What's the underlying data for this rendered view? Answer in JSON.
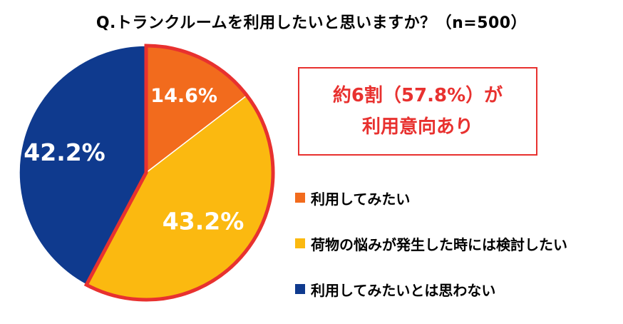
{
  "title": "Q.トランクルームを利用したいと思いますか？（n=500）",
  "callout": {
    "line1": "約6割（57.8%）が",
    "line2": "利用意向あり",
    "color": "#e8312f"
  },
  "chart_data": {
    "type": "pie",
    "title": "Q.トランクルームを利用したいと思いますか？（n=500）",
    "n": 500,
    "start": "12 o'clock",
    "direction": "clockwise",
    "slices": [
      {
        "name": "利用してみたい",
        "value": 14.6,
        "label": "14.6%",
        "color": "#f26b1d",
        "highlighted": true
      },
      {
        "name": "荷物の悩みが発生した時には検討したい",
        "value": 43.2,
        "label": "43.2%",
        "color": "#fbb910",
        "highlighted": true
      },
      {
        "name": "利用してみたいとは思わない",
        "value": 42.2,
        "label": "42.2%",
        "color": "#0f3a8e",
        "highlighted": false
      }
    ],
    "highlight_outline_color": "#e8312f",
    "legend_position": "right"
  }
}
